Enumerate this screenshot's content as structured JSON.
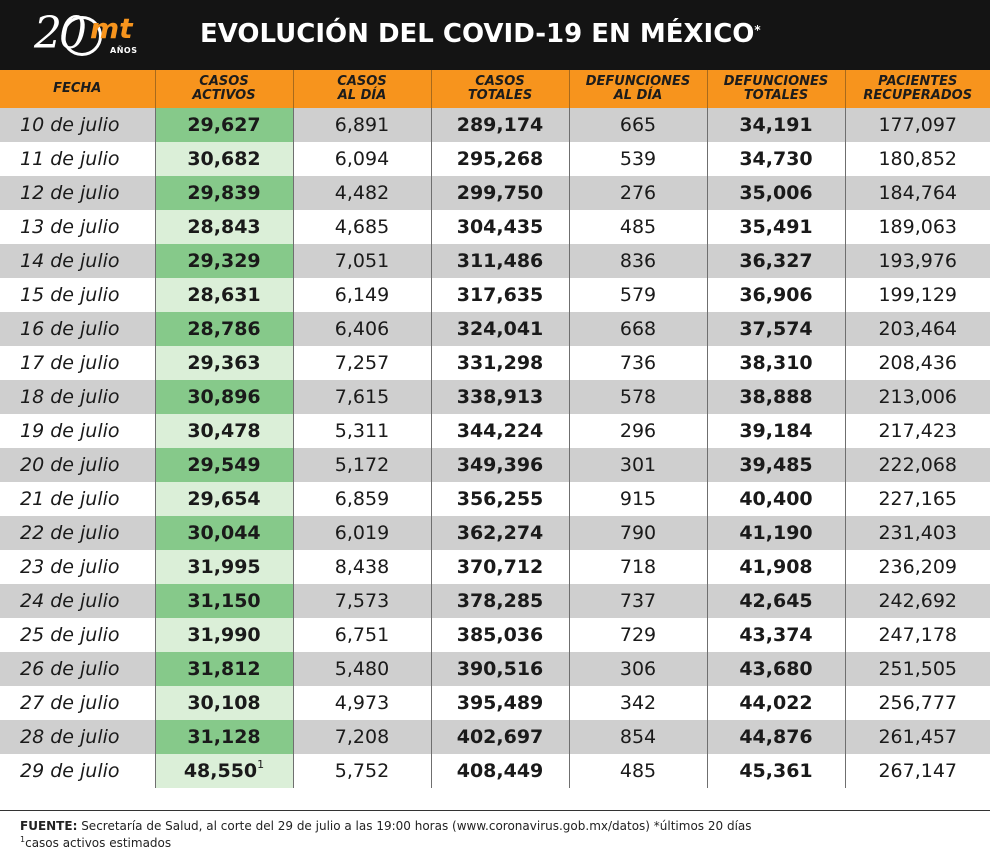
{
  "header": {
    "logo_number": "20",
    "logo_brand": "mt",
    "logo_sub": "AÑOS",
    "title": "EVOLUCIÓN DEL COVID-19 EN MÉXICO",
    "title_mark": "*"
  },
  "table": {
    "columns": [
      "FECHA",
      "CASOS\nACTIVOS",
      "CASOS\nAL DÍA",
      "CASOS\nTOTALES",
      "DEFUNCIONES\nAL DÍA",
      "DEFUNCIONES\nTOTALES",
      "PACIENTES\nRECUPERADOS"
    ],
    "rows": [
      {
        "fecha": "10 de julio",
        "activos": "29,627",
        "al_dia": "6,891",
        "totales": "289,174",
        "def_dia": "665",
        "def_totales": "34,191",
        "recuperados": "177,097"
      },
      {
        "fecha": "11 de julio",
        "activos": "30,682",
        "al_dia": "6,094",
        "totales": "295,268",
        "def_dia": "539",
        "def_totales": "34,730",
        "recuperados": "180,852"
      },
      {
        "fecha": "12 de julio",
        "activos": "29,839",
        "al_dia": "4,482",
        "totales": "299,750",
        "def_dia": "276",
        "def_totales": "35,006",
        "recuperados": "184,764"
      },
      {
        "fecha": "13 de julio",
        "activos": "28,843",
        "al_dia": "4,685",
        "totales": "304,435",
        "def_dia": "485",
        "def_totales": "35,491",
        "recuperados": "189,063"
      },
      {
        "fecha": "14 de julio",
        "activos": "29,329",
        "al_dia": "7,051",
        "totales": "311,486",
        "def_dia": "836",
        "def_totales": "36,327",
        "recuperados": "193,976"
      },
      {
        "fecha": "15 de julio",
        "activos": "28,631",
        "al_dia": "6,149",
        "totales": "317,635",
        "def_dia": "579",
        "def_totales": "36,906",
        "recuperados": "199,129"
      },
      {
        "fecha": "16 de julio",
        "activos": "28,786",
        "al_dia": "6,406",
        "totales": "324,041",
        "def_dia": "668",
        "def_totales": "37,574",
        "recuperados": "203,464"
      },
      {
        "fecha": "17 de julio",
        "activos": "29,363",
        "al_dia": "7,257",
        "totales": "331,298",
        "def_dia": "736",
        "def_totales": "38,310",
        "recuperados": "208,436"
      },
      {
        "fecha": "18 de julio",
        "activos": "30,896",
        "al_dia": "7,615",
        "totales": "338,913",
        "def_dia": "578",
        "def_totales": "38,888",
        "recuperados": "213,006"
      },
      {
        "fecha": "19 de julio",
        "activos": "30,478",
        "al_dia": "5,311",
        "totales": "344,224",
        "def_dia": "296",
        "def_totales": "39,184",
        "recuperados": "217,423"
      },
      {
        "fecha": "20 de julio",
        "activos": "29,549",
        "al_dia": "5,172",
        "totales": "349,396",
        "def_dia": "301",
        "def_totales": "39,485",
        "recuperados": "222,068"
      },
      {
        "fecha": "21 de julio",
        "activos": "29,654",
        "al_dia": "6,859",
        "totales": "356,255",
        "def_dia": "915",
        "def_totales": "40,400",
        "recuperados": "227,165"
      },
      {
        "fecha": "22 de julio",
        "activos": "30,044",
        "al_dia": "6,019",
        "totales": "362,274",
        "def_dia": "790",
        "def_totales": "41,190",
        "recuperados": "231,403"
      },
      {
        "fecha": "23 de julio",
        "activos": "31,995",
        "al_dia": "8,438",
        "totales": "370,712",
        "def_dia": "718",
        "def_totales": "41,908",
        "recuperados": "236,209"
      },
      {
        "fecha": "24 de julio",
        "activos": "31,150",
        "al_dia": "7,573",
        "totales": "378,285",
        "def_dia": "737",
        "def_totales": "42,645",
        "recuperados": "242,692"
      },
      {
        "fecha": "25 de julio",
        "activos": "31,990",
        "al_dia": "6,751",
        "totales": "385,036",
        "def_dia": "729",
        "def_totales": "43,374",
        "recuperados": "247,178"
      },
      {
        "fecha": "26 de julio",
        "activos": "31,812",
        "al_dia": "5,480",
        "totales": "390,516",
        "def_dia": "306",
        "def_totales": "43,680",
        "recuperados": "251,505"
      },
      {
        "fecha": "27 de julio",
        "activos": "30,108",
        "al_dia": "4,973",
        "totales": "395,489",
        "def_dia": "342",
        "def_totales": "44,022",
        "recuperados": "256,777"
      },
      {
        "fecha": "28 de julio",
        "activos": "31,128",
        "al_dia": "7,208",
        "totales": "402,697",
        "def_dia": "854",
        "def_totales": "44,876",
        "recuperados": "261,457"
      },
      {
        "fecha": "29 de julio",
        "activos": "48,550",
        "activos_mark": "1",
        "al_dia": "5,752",
        "totales": "408,449",
        "def_dia": "485",
        "def_totales": "45,361",
        "recuperados": "267,147"
      }
    ]
  },
  "footer": {
    "source_label": "FUENTE:",
    "source_text": " Secretaría de Salud, al corte del 29 de julio a las 19:00 horas (www.coronavirus.gob.mx/datos) *últimos 20 días",
    "note_mark": "1",
    "note_text": "casos activos estimados"
  },
  "colors": {
    "header_bg": "#141414",
    "column_header_bg": "#f7941d",
    "row_odd_bg": "#cfcfcf",
    "active_odd_bg": "#86c98a",
    "active_even_bg": "#dbefd8"
  }
}
